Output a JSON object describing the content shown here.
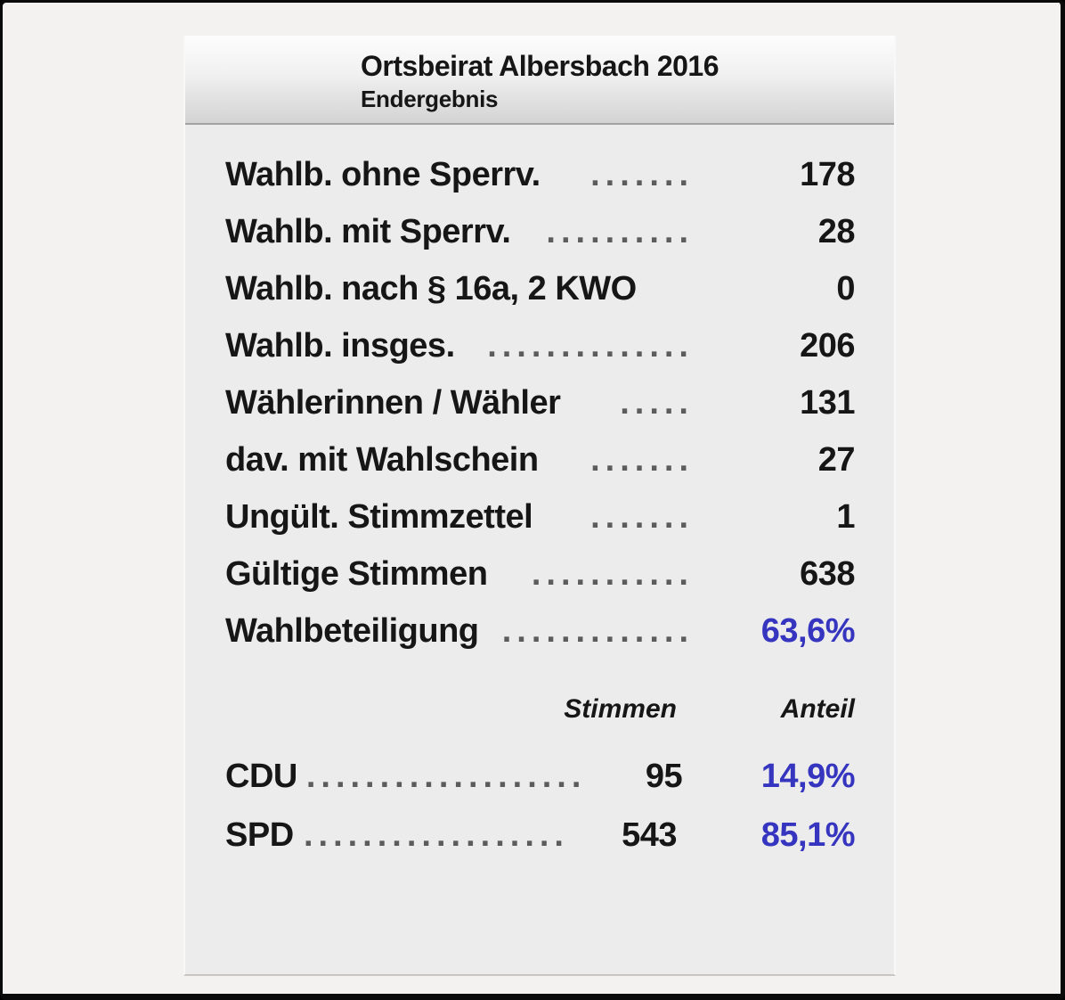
{
  "header": {
    "title": "Ortsbeirat Albersbach 2016",
    "subtitle": "Endergebnis"
  },
  "stats": {
    "rows": [
      {
        "label": "Wahlb. ohne Sperrv.",
        "dots": ".......",
        "value": "178"
      },
      {
        "label": "Wahlb. mit Sperrv.",
        "dots": "..........",
        "value": "28"
      },
      {
        "label": "Wahlb. nach § 16a, 2 KWO",
        "dots": "",
        "value": "0"
      },
      {
        "label": "Wahlb. insges.",
        "dots": "..............",
        "value": "206"
      },
      {
        "label": "Wählerinnen / Wähler",
        "dots": ".....",
        "value": "131"
      },
      {
        "label": "dav. mit Wahlschein",
        "dots": ".......",
        "value": "27"
      },
      {
        "label": "Ungült. Stimmzettel",
        "dots": ".......",
        "value": "1"
      },
      {
        "label": "Gültige Stimmen",
        "dots": "...........",
        "value": "638"
      },
      {
        "label": "Wahlbeteiligung",
        "dots": ".............",
        "value": "63,6%"
      }
    ]
  },
  "results": {
    "columns": {
      "votes": "Stimmen",
      "share": "Anteil"
    },
    "rows": [
      {
        "party": "CDU",
        "dots": "...................",
        "votes": "95",
        "share": "14,9%"
      },
      {
        "party": "SPD",
        "dots": "..................",
        "votes": "543",
        "share": "85,1%"
      }
    ]
  },
  "colors": {
    "accent_blue": "#3535bf",
    "text": "#161616",
    "panel_bg": "#edecec",
    "page_bg": "#f3f2f1",
    "header_gradient_top": "#fdfdfd",
    "header_gradient_bottom": "#d3d3d3"
  }
}
